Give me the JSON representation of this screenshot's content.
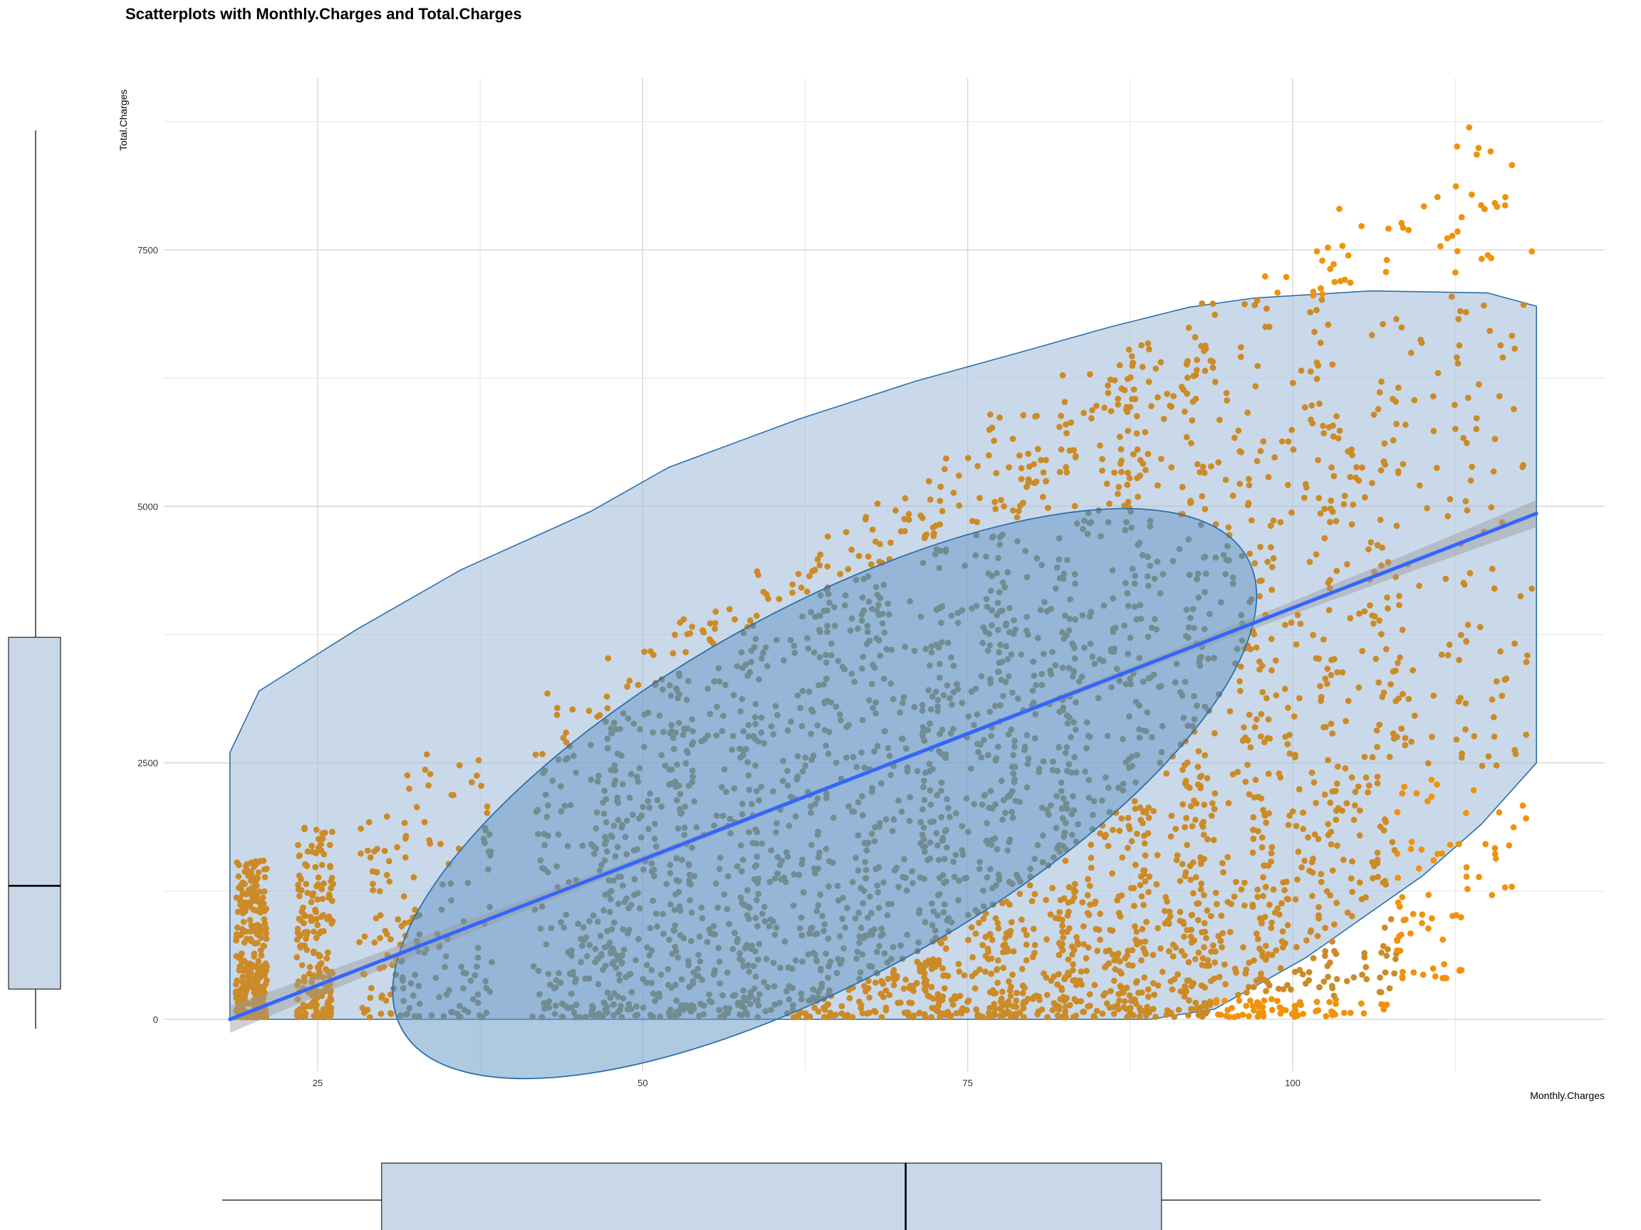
{
  "chart_data": {
    "type": "scatter",
    "title": "Scatterplots with Monthly.Charges and Total.Charges",
    "xlabel": "Monthly.Charges",
    "ylabel": "Total.Charges",
    "xlim": [
      11.5,
      121
    ],
    "ylim": [
      -800,
      8800
    ],
    "x_ticks": [
      25,
      50,
      75,
      100
    ],
    "y_ticks": [
      0,
      2500,
      5000,
      7500
    ],
    "grid": true,
    "regression_line": {
      "x": [
        18.25,
        118.75
      ],
      "y": [
        0,
        4930
      ],
      "color": "#3366ff"
    },
    "hull_polygon": [
      [
        18.25,
        2600
      ],
      [
        20.5,
        3200
      ],
      [
        28,
        3800
      ],
      [
        36,
        4380
      ],
      [
        46,
        4950
      ],
      [
        52,
        5380
      ],
      [
        62,
        5850
      ],
      [
        71,
        6220
      ],
      [
        79,
        6500
      ],
      [
        86,
        6750
      ],
      [
        92,
        6940
      ],
      [
        97,
        7030
      ],
      [
        106,
        7100
      ],
      [
        115,
        7080
      ],
      [
        118.75,
        6950
      ],
      [
        118.75,
        2500
      ],
      [
        114.5,
        1900
      ],
      [
        110,
        1400
      ],
      [
        101,
        600
      ],
      [
        94,
        100
      ],
      [
        89,
        0
      ],
      [
        18.25,
        0
      ]
    ],
    "ellipse": {
      "center_x": 64,
      "center_y": 2200,
      "semi_major_x": 32.5,
      "semi_major_y": 2300,
      "semi_minor_x": 9.2,
      "semi_minor_y": -1350
    },
    "point_colors": {
      "outside_ellipse": "#cc8b27",
      "inside_ellipse": "#858563",
      "right_tail": "#f0920c"
    },
    "clusters": [
      {
        "x_center": 19.9,
        "x_spread": 1.2,
        "y_min": 20,
        "y_max": 1550,
        "count": 300
      },
      {
        "x_center": 24.8,
        "x_spread": 1.4,
        "y_min": 20,
        "y_max": 1950,
        "count": 190
      },
      {
        "x_center": 30,
        "x_spread": 1.8,
        "y_min": 20,
        "y_max": 2100,
        "count": 60
      },
      {
        "x_center": 35,
        "x_spread": 3.5,
        "y_min": 20,
        "y_max": 2600,
        "count": 110
      },
      {
        "x_center": 45,
        "x_spread": 3.5,
        "y_min": 20,
        "y_max": 3200,
        "count": 180
      },
      {
        "x_center": 50.5,
        "x_spread": 3.5,
        "y_min": 20,
        "y_max": 3600,
        "count": 220
      },
      {
        "x_center": 55.5,
        "x_spread": 3.5,
        "y_min": 20,
        "y_max": 4000,
        "count": 220
      },
      {
        "x_center": 61,
        "x_spread": 3.5,
        "y_min": 20,
        "y_max": 4400,
        "count": 200
      },
      {
        "x_center": 65.5,
        "x_spread": 3,
        "y_min": 20,
        "y_max": 4800,
        "count": 180
      },
      {
        "x_center": 70,
        "x_spread": 3.5,
        "y_min": 20,
        "y_max": 5100,
        "count": 260
      },
      {
        "x_center": 75,
        "x_spread": 3.5,
        "y_min": 20,
        "y_max": 5500,
        "count": 300
      },
      {
        "x_center": 80,
        "x_spread": 3.5,
        "y_min": 20,
        "y_max": 5900,
        "count": 320
      },
      {
        "x_center": 85.5,
        "x_spread": 3.5,
        "y_min": 20,
        "y_max": 6300,
        "count": 300
      },
      {
        "x_center": 90,
        "x_spread": 3.5,
        "y_min": 20,
        "y_max": 6700,
        "count": 280
      },
      {
        "x_center": 95,
        "x_spread": 3.5,
        "y_min": 20,
        "y_max": 7100,
        "count": 260
      },
      {
        "x_center": 100,
        "x_spread": 3.5,
        "y_min": 20,
        "y_max": 7500,
        "count": 240
      },
      {
        "x_center": 105,
        "x_spread": 3.5,
        "y_min": 50,
        "y_max": 7900,
        "count": 200
      },
      {
        "x_center": 110,
        "x_spread": 3.5,
        "y_min": 400,
        "y_max": 8200,
        "count": 140
      },
      {
        "x_center": 115.5,
        "x_spread": 3,
        "y_min": 1200,
        "y_max": 8700,
        "count": 90
      }
    ],
    "marginal_boxplots": {
      "x": {
        "whisker_min": 18.25,
        "q1": 30.4,
        "median": 70.35,
        "q3": 89.85,
        "whisker_max": 118.75
      },
      "y": {
        "whisker_min": 18.8,
        "q1": 401.4,
        "median": 1397.5,
        "q3": 3794.7,
        "whisker_max": 8684.8
      },
      "fill": "#c8d8e8",
      "stroke": "#333333"
    }
  }
}
